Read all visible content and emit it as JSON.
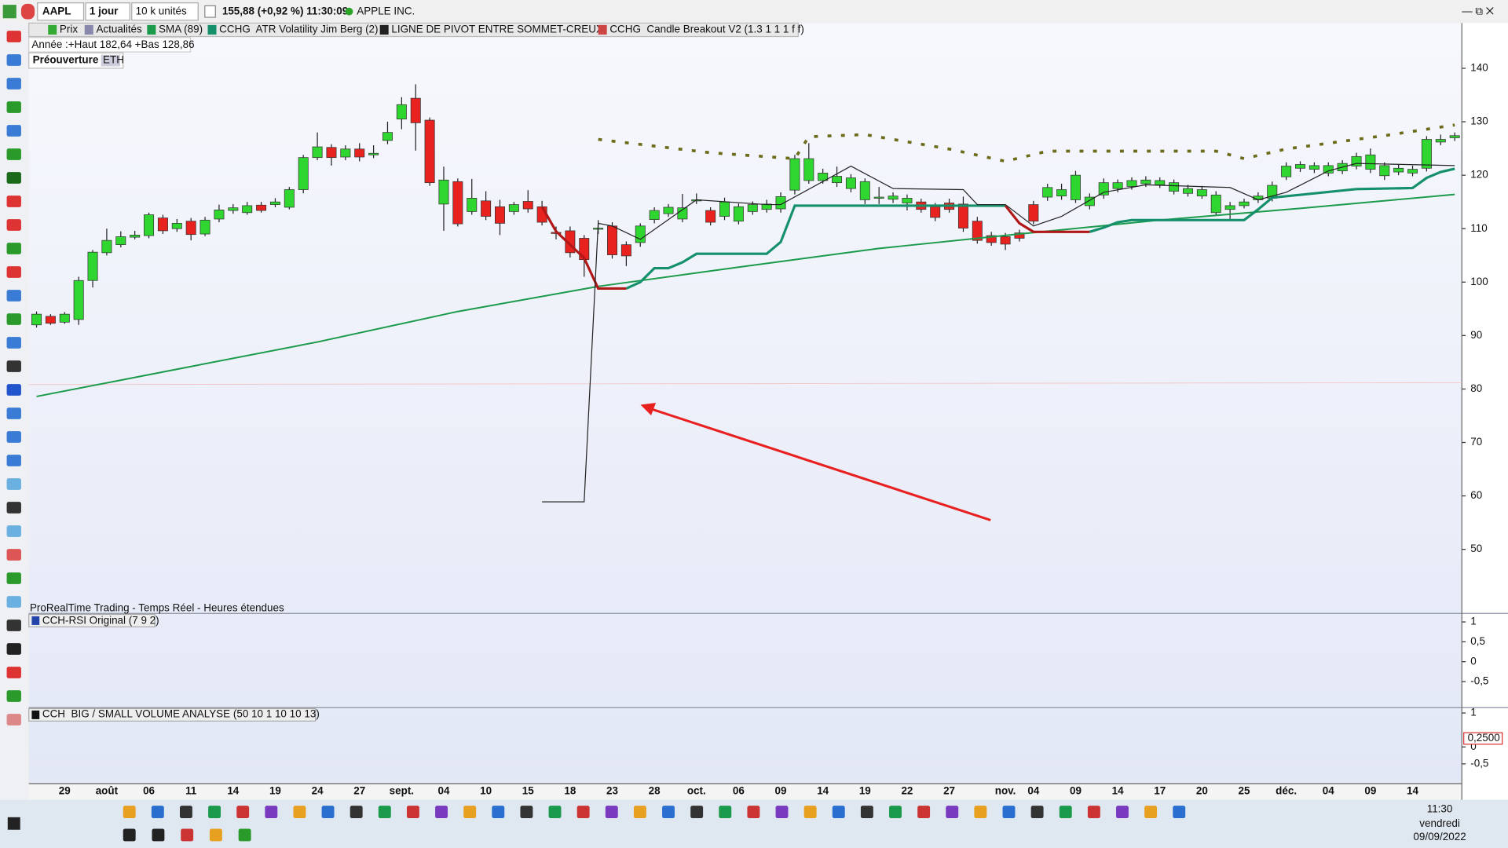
{
  "toolbar": {
    "symbol": "AAPL",
    "period": "1 jour",
    "units": "10 k unités",
    "quote": "155,88 (+0,92 %) 11:30:09",
    "name": "APPLE INC."
  },
  "legend_bar": [
    "Prix",
    "Actualités",
    "SMA (89)",
    "CCHG  ATR Volatility Jim Berg (2)",
    "LIGNE DE PIVOT ENTRE SOMMET-CREUX",
    "CCHG  Candle Breakout V2 (1.3 1 1 1 f f)"
  ],
  "info": {
    "year_range": "Année :+Haut 182,64 +Bas 128,86",
    "session": "Préouverture",
    "session_tag": "ETH",
    "footer": "ProRealTime Trading - Temps Réel - Heures étendues"
  },
  "chart_data": [
    {
      "type": "candlestick",
      "categories": [
        null,
        null,
        "29",
        null,
        null,
        "août",
        null,
        null,
        "06",
        null,
        null,
        "11",
        null,
        null,
        "14",
        null,
        null,
        "19",
        null,
        null,
        "24",
        null,
        null,
        "27",
        null,
        null,
        "sept.",
        null,
        null,
        "04",
        null,
        null,
        "10",
        null,
        null,
        "15",
        null,
        null,
        "18",
        null,
        null,
        "23",
        null,
        null,
        "28",
        null,
        null,
        "oct.",
        null,
        null,
        "06",
        null,
        null,
        "09",
        null,
        null,
        "14",
        null,
        null,
        "19",
        null,
        null,
        "22",
        null,
        null,
        "27",
        null,
        null,
        null,
        "nov.",
        null,
        "04",
        null,
        null,
        "09",
        null,
        null,
        "14",
        null,
        null,
        "17",
        null,
        null,
        "20",
        null,
        null,
        "25",
        null,
        null,
        "déc.",
        null,
        null,
        "04",
        null,
        null,
        "09",
        null,
        null,
        "14",
        null,
        null,
        null
      ],
      "open": [
        92,
        93.6,
        92.5,
        93,
        100.3,
        105.5,
        107,
        108.4,
        108.7,
        112,
        110,
        111.4,
        109,
        111.8,
        113.4,
        113,
        114.4,
        114.5,
        114,
        117.3,
        123.3,
        125.2,
        123.4,
        124.9,
        123.8,
        126.5,
        130.5,
        134.4,
        130.3,
        114.6,
        118.8,
        113.2,
        115.2,
        114.1,
        113.2,
        115.1,
        114.1,
        109.3,
        109.6,
        108.2,
        110,
        110.5,
        107,
        107.4,
        111.7,
        112.8,
        111.8,
        115.3,
        113.4,
        112.3,
        111.4,
        113.2,
        113.6,
        113.7,
        117.2,
        119,
        119,
        118.6,
        117.5,
        115.4,
        115.8,
        115.5,
        114.8,
        115,
        114.1,
        114.8,
        114.6,
        111.4,
        108.7,
        108.5,
        109.2,
        114.5,
        115.9,
        116.1,
        115.4,
        114.3,
        116.3,
        117.5,
        117.9,
        118.4,
        118.2,
        117,
        116.6,
        116.1,
        113,
        113.6,
        114.3,
        115.4,
        115.7,
        119.7,
        121.3,
        121.1,
        120.4,
        120.8,
        121.7,
        121.1,
        119.9,
        120.6,
        120.4,
        121.3,
        126.2,
        127
      ],
      "high": [
        94.5,
        94,
        94.4,
        101,
        106,
        110,
        109.5,
        109.6,
        113,
        112.6,
        111.8,
        112,
        112.2,
        114.5,
        114.6,
        115,
        115,
        115.7,
        117.8,
        123.8,
        128,
        125.8,
        125.6,
        126,
        125.6,
        130,
        134.6,
        137,
        130.8,
        121.6,
        119.4,
        119.3,
        117,
        115.4,
        115,
        117.2,
        115.2,
        110.4,
        110.4,
        108.8,
        111.6,
        111.2,
        107.6,
        111,
        114,
        114.6,
        116.5,
        116.6,
        114,
        115.8,
        114.7,
        115.1,
        115.4,
        116.8,
        123.8,
        126,
        121.2,
        121.6,
        120.2,
        119.4,
        117.8,
        116.8,
        116.4,
        115.6,
        114.8,
        115.6,
        116,
        112.2,
        109.4,
        109.2,
        109.8,
        115.2,
        118.4,
        118.4,
        120.8,
        116.6,
        119.4,
        119.2,
        119.6,
        119.8,
        119.6,
        119.2,
        118.2,
        118,
        117,
        115,
        115.6,
        116.8,
        118.8,
        122.4,
        122.6,
        122.4,
        122.4,
        122.8,
        124.2,
        125,
        122.4,
        122,
        121.8,
        127.3,
        127.6,
        128
      ],
      "low": [
        91.5,
        92,
        92.2,
        92,
        99,
        105,
        106.5,
        108,
        108.2,
        109,
        109.4,
        107.8,
        108.6,
        111.2,
        112.8,
        112.6,
        113,
        114,
        113.6,
        116.6,
        122.8,
        121.8,
        122.8,
        122.6,
        123.2,
        125.8,
        128.6,
        124.6,
        118,
        109.6,
        110.4,
        112.6,
        111.6,
        108.8,
        112.6,
        113,
        110.6,
        108,
        104.6,
        101,
        109,
        104.4,
        103,
        106.6,
        111,
        112.2,
        111.2,
        114.6,
        110.6,
        111.6,
        110.8,
        112.6,
        113,
        113,
        116.4,
        118.4,
        118.4,
        117.8,
        116.8,
        114.6,
        114.6,
        114.8,
        113.4,
        113,
        111.4,
        113,
        109.4,
        107.2,
        106.8,
        106,
        107.6,
        110.8,
        115.2,
        115.4,
        114.8,
        113.6,
        115.6,
        116.8,
        117.3,
        117.8,
        117.6,
        116.4,
        116,
        115.6,
        112.4,
        111.8,
        113.8,
        114.8,
        115.1,
        119.1,
        120.6,
        120.4,
        119.8,
        120.2,
        121.1,
        120.4,
        119.1,
        120,
        119.8,
        120.7,
        125.6,
        126.4
      ],
      "close": [
        94,
        92.3,
        94,
        100.3,
        105.6,
        107.8,
        108.5,
        108.8,
        112.6,
        109.6,
        111,
        108.9,
        111.6,
        113.5,
        113.9,
        114.3,
        113.4,
        115,
        117.3,
        123.3,
        125.3,
        123.3,
        124.9,
        123.4,
        124.1,
        128,
        133.2,
        129.8,
        118.6,
        119.1,
        110.9,
        115.7,
        112.3,
        111,
        114.5,
        113.7,
        111.2,
        109.1,
        105.5,
        104.2,
        110.1,
        105.1,
        104.9,
        110.5,
        113.4,
        114,
        113.9,
        115.4,
        111.2,
        115,
        114.1,
        114.5,
        114.6,
        116,
        123.1,
        123.1,
        120.4,
        119.8,
        119.5,
        118.8,
        115.9,
        116.1,
        115.7,
        113.6,
        112.1,
        113.6,
        110.1,
        107.8,
        107.4,
        107.1,
        108.2,
        111.4,
        117.7,
        117.3,
        120,
        115.9,
        118.6,
        118.6,
        119,
        119.1,
        119,
        118.6,
        117.5,
        117.3,
        116.3,
        114.3,
        115,
        116.1,
        118.1,
        121.7,
        122,
        121.8,
        121.8,
        122.2,
        123.5,
        123.8,
        121.8,
        121.3,
        121.1,
        126.7,
        126.7,
        127.4
      ],
      "up_color": "#2fd62f",
      "down_color": "#e8231f",
      "ylim": [
        38.2,
        148.1
      ],
      "yticks": [
        50,
        60,
        70,
        80,
        90,
        100,
        110,
        120,
        130,
        140
      ],
      "lines": [
        {
          "color": "#1a9a4a",
          "width": 1.6,
          "x": [
            0,
            10,
            20,
            30,
            40,
            50,
            60,
            70,
            80,
            90,
            101
          ],
          "values": [
            78.6,
            83.7,
            88.8,
            94.5,
            99.2,
            102.8,
            106.3,
            109,
            111.6,
            113.8,
            116.4
          ]
        },
        {
          "color": "#14906a",
          "width": 2.6,
          "x": [
            42,
            43,
            44,
            45,
            46,
            47,
            52,
            53,
            54,
            69,
            70,
            75,
            76,
            77,
            78,
            86,
            87,
            88,
            94,
            98,
            99,
            100,
            101
          ],
          "values": [
            98.8,
            100,
            102.6,
            102.6,
            103.7,
            105.3,
            105.3,
            107.5,
            114.3,
            114.3,
            null,
            109.4,
            110.2,
            111.2,
            111.6,
            111.6,
            113.6,
            115.8,
            117.4,
            117.6,
            119.5,
            120.6,
            121.2
          ]
        },
        {
          "color": "#b01818",
          "width": 2.6,
          "x": [
            36,
            37,
            38,
            39,
            40,
            42,
            41,
            69,
            70,
            71,
            75
          ],
          "values": [
            114.1,
            109.5,
            107,
            104.5,
            98.8,
            98.8,
            null,
            114.3,
            111,
            109.4,
            109.4
          ]
        },
        {
          "color": "#222222",
          "width": 1,
          "x": [
            36,
            39,
            40,
            41,
            43,
            47,
            52,
            53,
            58,
            61,
            66,
            67,
            69,
            71,
            73,
            76,
            79,
            85,
            87,
            89,
            92,
            94,
            101
          ],
          "values": [
            58.9,
            58.9,
            111,
            110.5,
            108,
            115.4,
            114.5,
            114.5,
            121.7,
            117.5,
            117.3,
            114.5,
            114.5,
            110.5,
            112.3,
            116.8,
            118.2,
            117.7,
            115.4,
            116.8,
            120.8,
            122.2,
            121.8
          ]
        },
        {
          "color": "#6b6b1a",
          "width": 3,
          "dash": "4 10",
          "x": [
            40,
            48,
            54,
            55,
            59,
            65,
            69,
            72,
            84,
            86,
            89,
            94,
            96,
            101
          ],
          "values": [
            126.7,
            124.2,
            123.1,
            127.2,
            127.6,
            124.9,
            122.6,
            124.5,
            124.5,
            123.1,
            124.9,
            126.7,
            127.4,
            129.4
          ]
        }
      ]
    },
    {
      "type": "indicator",
      "title": "CCH-RSI Original (7 9 2)",
      "ylim": [
        -1.13,
        1.19
      ],
      "yticks": [
        1,
        {
          "value": 0.5,
          "label": "0,5"
        },
        0,
        {
          "value": -0.5,
          "label": "-0,5"
        }
      ]
    },
    {
      "type": "indicator",
      "title": "CCH  BIG / SMALL VOLUME ANALYSE (50 10 1 10 10 13)",
      "ylim": [
        -1.08,
        1.13
      ],
      "yticks": [
        1,
        0,
        {
          "value": -0.5,
          "label": "-0,5"
        }
      ],
      "marker": {
        "value": 0.25,
        "label": "0,2500"
      }
    }
  ],
  "taskbar": {
    "time": "11:30",
    "day": "vendredi",
    "date": "09/09/2022"
  }
}
